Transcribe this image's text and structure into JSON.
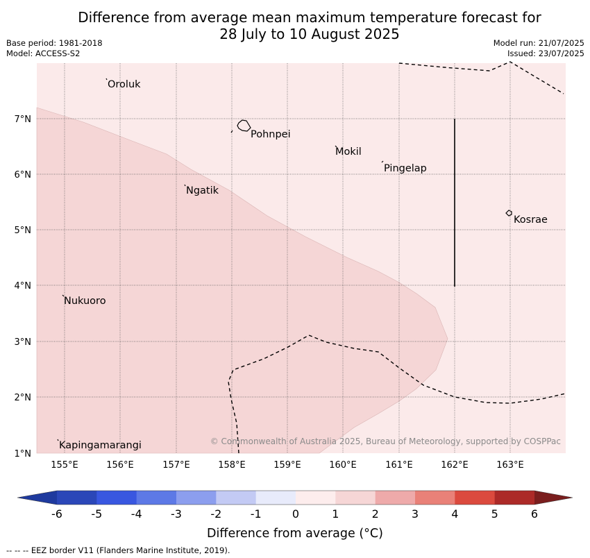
{
  "title_line1": "Difference from average mean maximum temperature forecast for",
  "title_line2": "28 July to 10 August 2025",
  "base_period": "Base period: 1981-2018",
  "model": "Model: ACCESS-S2",
  "model_run": "Model run: 21/07/2025",
  "issued": "Issued: 23/07/2025",
  "copyright": "© Commonwealth of Australia 2025, Bureau of Meteorology, supported by COSPPac",
  "colorbar_label": "Difference from average (°C)",
  "footnote": "-- -- -- EEZ border V11 (Flanders Marine Institute, 2019).",
  "lon_ticks": [
    "155°E",
    "156°E",
    "157°E",
    "158°E",
    "159°E",
    "160°E",
    "161°E",
    "162°E",
    "163°E"
  ],
  "lat_ticks": [
    "7°N",
    "6°N",
    "5°N",
    "4°N",
    "3°N",
    "2°N",
    "1°N"
  ],
  "places": {
    "oroluk": "Oroluk",
    "pohnpei": "Pohnpei",
    "mokil": "Mokil",
    "pingelap": "Pingelap",
    "ngatik": "Ngatik",
    "kosrae": "Kosrae",
    "nukuoro": "Nukuoro",
    "kapingamarangi": "Kapingamarangi"
  },
  "colorbar": {
    "ticks": [
      "-6",
      "-5",
      "-4",
      "-3",
      "-2",
      "-1",
      "0",
      "1",
      "2",
      "3",
      "4",
      "5",
      "6"
    ],
    "colors": [
      "#1f3a9e",
      "#2b47b8",
      "#3957e0",
      "#5d79e6",
      "#8c9eee",
      "#c3caf4",
      "#e8ebfb",
      "#fdeded",
      "#f6d6d6",
      "#eeaaaa",
      "#e98178",
      "#db4a3e",
      "#ac2a28",
      "#7a1e1e"
    ]
  },
  "map_colors": {
    "range_0_1": "#fbeaea",
    "range_1_2": "#f5d6d6"
  }
}
